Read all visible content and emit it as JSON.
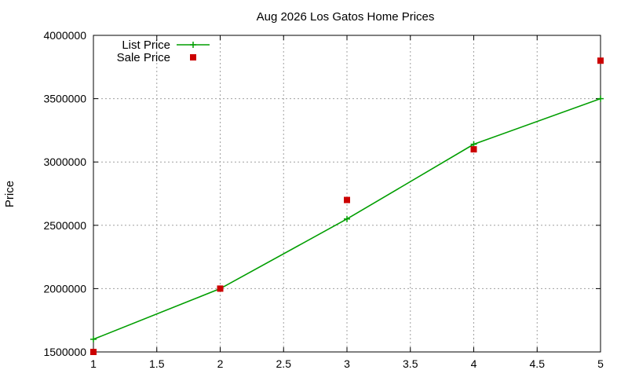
{
  "chart_data": {
    "type": "line",
    "title": "Aug 2026 Los Gatos Home Prices",
    "xlabel": "",
    "ylabel": "Price",
    "xlim": [
      1,
      5
    ],
    "ylim": [
      1500000,
      4000000
    ],
    "x_ticks": [
      1,
      1.5,
      2,
      2.5,
      3,
      3.5,
      4,
      4.5,
      5
    ],
    "y_ticks": [
      1500000,
      2000000,
      2500000,
      3000000,
      3500000,
      4000000
    ],
    "x_tick_labels": [
      "1",
      "1.5",
      "2",
      "2.5",
      "3",
      "3.5",
      "4",
      "4.5",
      "5"
    ],
    "y_tick_labels": [
      "1500000",
      "2000000",
      "2500000",
      "3000000",
      "3500000",
      "4000000"
    ],
    "grid": true,
    "legend_position": "top-left",
    "series": [
      {
        "name": "List Price",
        "style": "linespoints",
        "marker": "plus",
        "color": "#009e00",
        "x": [
          1,
          2,
          3,
          4,
          5
        ],
        "y": [
          1600000,
          2000000,
          2550000,
          3140000,
          3500000
        ]
      },
      {
        "name": "Sale Price",
        "style": "points",
        "marker": "square",
        "color": "#cc0000",
        "x": [
          1,
          2,
          3,
          4,
          5
        ],
        "y": [
          1500000,
          2000000,
          2700000,
          3100000,
          3800000
        ]
      }
    ]
  }
}
